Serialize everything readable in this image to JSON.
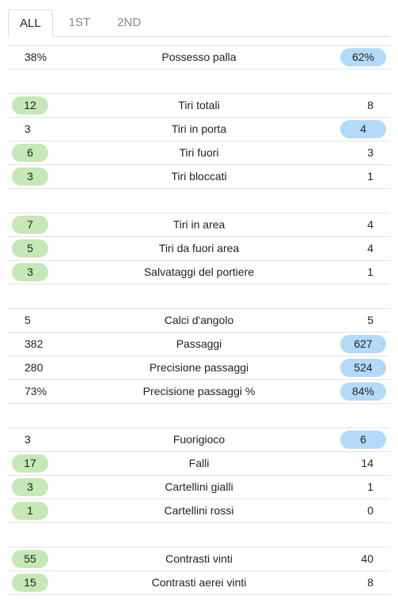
{
  "tabs": [
    {
      "label": "ALL",
      "active": true
    },
    {
      "label": "1ST",
      "active": false
    },
    {
      "label": "2ND",
      "active": false
    }
  ],
  "colors": {
    "home_highlight": "#c5e8b6",
    "away_highlight": "#b4dafa"
  },
  "groups": [
    [
      {
        "label": "Possesso palla",
        "home": "38%",
        "away": "62%",
        "winner": "away"
      }
    ],
    [
      {
        "label": "Tiri totali",
        "home": "12",
        "away": "8",
        "winner": "home"
      },
      {
        "label": "Tiri in porta",
        "home": "3",
        "away": "4",
        "winner": "away"
      },
      {
        "label": "Tiri fuori",
        "home": "6",
        "away": "3",
        "winner": "home"
      },
      {
        "label": "Tiri bloccati",
        "home": "3",
        "away": "1",
        "winner": "home"
      }
    ],
    [
      {
        "label": "Tiri in area",
        "home": "7",
        "away": "4",
        "winner": "home"
      },
      {
        "label": "Tiri da fuori area",
        "home": "5",
        "away": "4",
        "winner": "home"
      },
      {
        "label": "Salvataggi del portiere",
        "home": "3",
        "away": "1",
        "winner": "home"
      }
    ],
    [
      {
        "label": "Calci d'angolo",
        "home": "5",
        "away": "5",
        "winner": "none"
      },
      {
        "label": "Passaggi",
        "home": "382",
        "away": "627",
        "winner": "away"
      },
      {
        "label": "Precisione passaggi",
        "home": "280",
        "away": "524",
        "winner": "away"
      },
      {
        "label": "Precisione passaggi %",
        "home": "73%",
        "away": "84%",
        "winner": "away"
      }
    ],
    [
      {
        "label": "Fuorigioco",
        "home": "3",
        "away": "6",
        "winner": "away"
      },
      {
        "label": "Falli",
        "home": "17",
        "away": "14",
        "winner": "home"
      },
      {
        "label": "Cartellini gialli",
        "home": "3",
        "away": "1",
        "winner": "home"
      },
      {
        "label": "Cartellini rossi",
        "home": "1",
        "away": "0",
        "winner": "home"
      }
    ],
    [
      {
        "label": "Contrasti vinti",
        "home": "55",
        "away": "40",
        "winner": "home"
      },
      {
        "label": "Contrasti aerei vinti",
        "home": "15",
        "away": "8",
        "winner": "home"
      }
    ]
  ]
}
